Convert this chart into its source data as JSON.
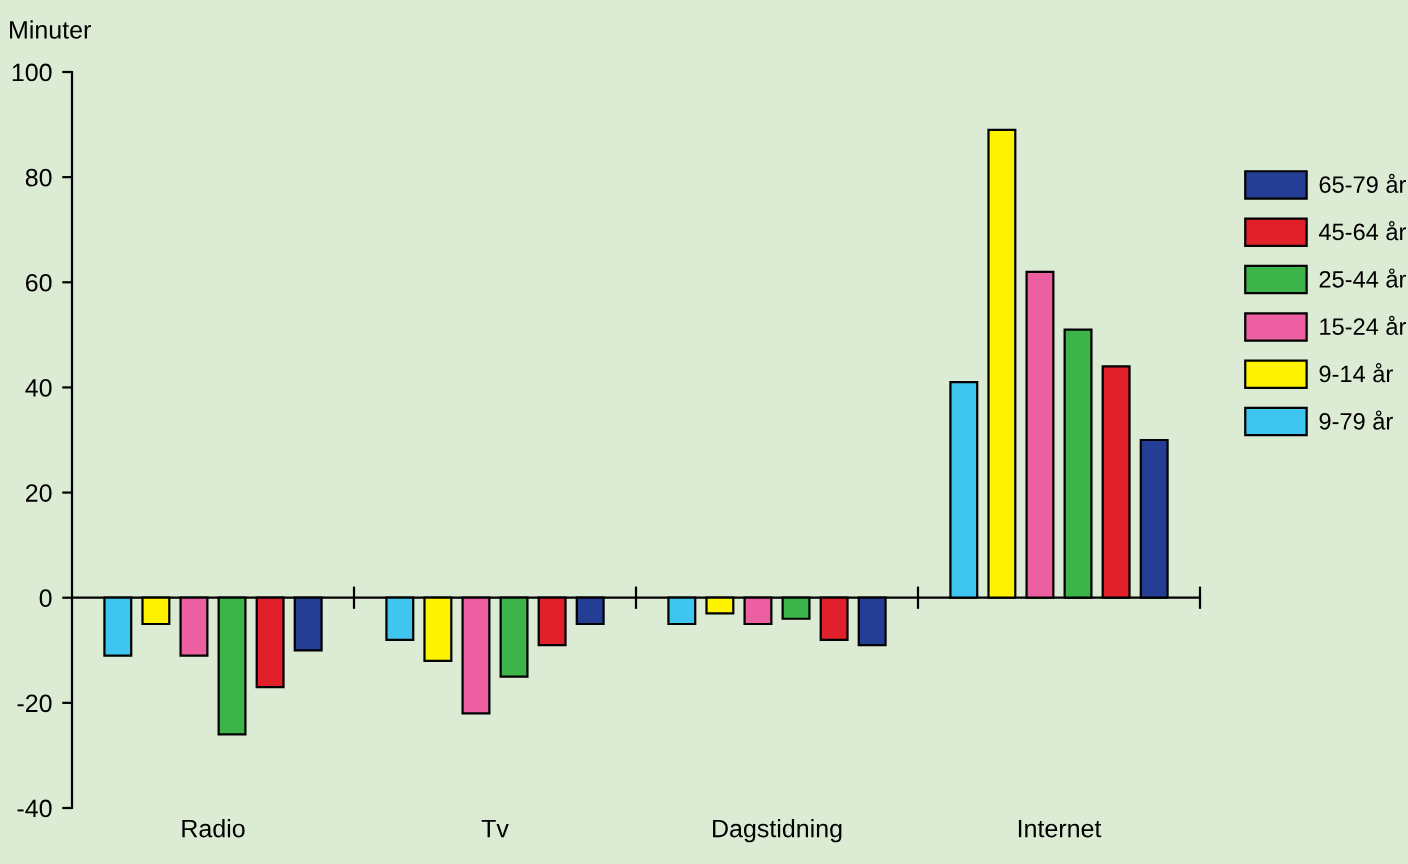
{
  "chart_data": {
    "type": "bar",
    "ylabel": "Minuter",
    "categories": [
      "Radio",
      "Tv",
      "Dagstidning",
      "Internet"
    ],
    "series": [
      {
        "name": "9-79 år",
        "color": "#3ec6f0",
        "values": [
          -11,
          -8,
          -5,
          41
        ]
      },
      {
        "name": "9-14 år",
        "color": "#fff200",
        "values": [
          -5,
          -12,
          -3,
          89
        ]
      },
      {
        "name": "15-24 år",
        "color": "#ec5fa0",
        "values": [
          -11,
          -22,
          -5,
          62
        ]
      },
      {
        "name": "25-44 år",
        "color": "#3db44a",
        "values": [
          -26,
          -15,
          -4,
          51
        ]
      },
      {
        "name": "45-64 år",
        "color": "#e0202a",
        "values": [
          -17,
          -9,
          -8,
          44
        ]
      },
      {
        "name": "65-79 år",
        "color": "#233e94",
        "values": [
          -10,
          -5,
          -9,
          30
        ]
      }
    ],
    "ylim": [
      -40,
      100
    ],
    "yticks": [
      -40,
      -20,
      0,
      20,
      40,
      60,
      80,
      100
    ],
    "legend": "right"
  }
}
